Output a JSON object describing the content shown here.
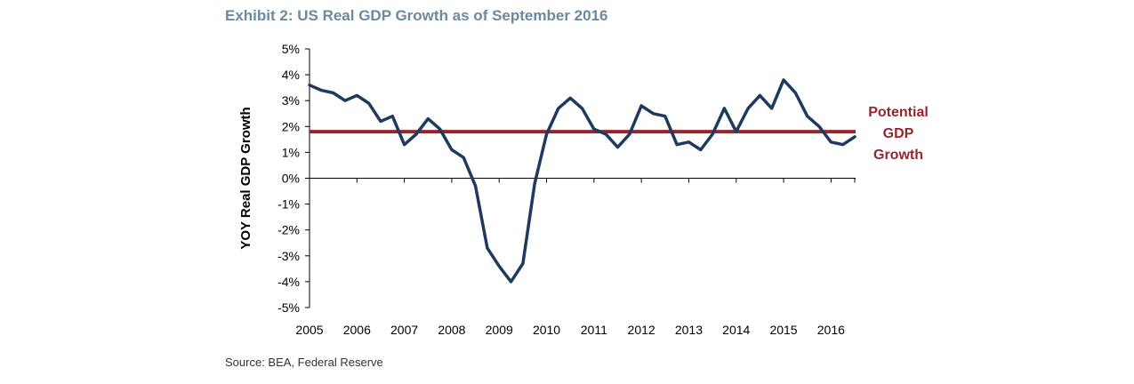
{
  "title": "Exhibit 2: US Real GDP Growth as of September 2016",
  "source": "Source: BEA, Federal Reserve",
  "colors": {
    "gdp_line": "#1f3a5f",
    "potential_line": "#96262e",
    "title": "#6a8aa0",
    "axis": "#000000"
  },
  "chart_data": {
    "type": "line",
    "title": "Exhibit 2: US Real GDP Growth as of September 2016",
    "xlabel": "",
    "ylabel": "YOY Real GDP Growth",
    "x_ticks": [
      "2005",
      "2006",
      "2007",
      "2008",
      "2009",
      "2010",
      "2011",
      "2012",
      "2013",
      "2014",
      "2015",
      "2016"
    ],
    "y_ticks": [
      "5%",
      "4%",
      "3%",
      "2%",
      "1%",
      "0%",
      "-1%",
      "-2%",
      "-3%",
      "-4%",
      "-5%"
    ],
    "ylim": [
      -5,
      5
    ],
    "xlim": [
      "2005 Q1",
      "2016 Q3"
    ],
    "grid": false,
    "series": [
      {
        "name": "",
        "x": [
          "2005 Q1",
          "2005 Q2",
          "2005 Q3",
          "2005 Q4",
          "2006 Q1",
          "2006 Q2",
          "2006 Q3",
          "2006 Q4",
          "2007 Q1",
          "2007 Q2",
          "2007 Q3",
          "2007 Q4",
          "2008 Q1",
          "2008 Q2",
          "2008 Q3",
          "2008 Q4",
          "2009 Q1",
          "2009 Q2",
          "2009 Q3",
          "2009 Q4",
          "2010 Q1",
          "2010 Q2",
          "2010 Q3",
          "2010 Q4",
          "2011 Q1",
          "2011 Q2",
          "2011 Q3",
          "2011 Q4",
          "2012 Q1",
          "2012 Q2",
          "2012 Q3",
          "2012 Q4",
          "2013 Q1",
          "2013 Q2",
          "2013 Q3",
          "2013 Q4",
          "2014 Q1",
          "2014 Q2",
          "2014 Q3",
          "2014 Q4",
          "2015 Q1",
          "2015 Q2",
          "2015 Q3",
          "2015 Q4",
          "2016 Q1",
          "2016 Q2",
          "2016 Q3"
        ],
        "values": [
          3.6,
          3.4,
          3.3,
          3.0,
          3.2,
          2.9,
          2.2,
          2.4,
          1.3,
          1.7,
          2.3,
          1.9,
          1.1,
          0.8,
          -0.3,
          -2.7,
          -3.4,
          -4.0,
          -3.3,
          -0.2,
          1.7,
          2.7,
          3.1,
          2.7,
          1.9,
          1.7,
          1.2,
          1.7,
          2.8,
          2.5,
          2.4,
          1.3,
          1.4,
          1.1,
          1.7,
          2.7,
          1.8,
          2.7,
          3.2,
          2.7,
          3.8,
          3.3,
          2.4,
          2.0,
          1.4,
          1.3,
          1.6
        ]
      },
      {
        "name": "Potential GDP Growth",
        "value": 1.8
      }
    ],
    "annotations": [
      {
        "text_lines": [
          "Potential",
          "GDP",
          "Growth"
        ],
        "anchor": "right of reference line"
      }
    ]
  }
}
